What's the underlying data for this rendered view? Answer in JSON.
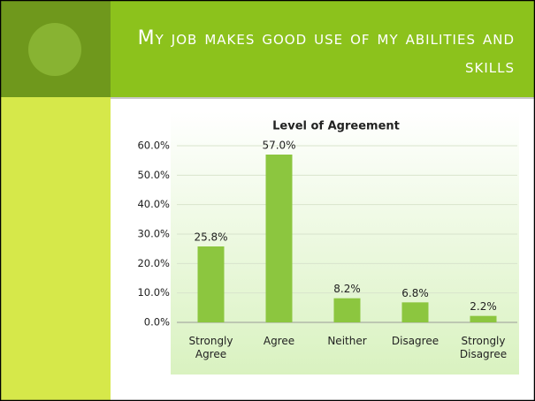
{
  "title": "My job makes good use of my abilities and skills",
  "chart_data": {
    "type": "bar",
    "title": "Level of Agreement",
    "categories": [
      "Strongly Agree",
      "Agree",
      "Neither",
      "Disagree",
      "Strongly Disagree"
    ],
    "values": [
      25.8,
      57.0,
      8.2,
      6.8,
      2.2
    ],
    "value_labels": [
      "25.8%",
      "57.0%",
      "8.2%",
      "6.8%",
      "2.2%"
    ],
    "color": "#8cc63f",
    "ylim": [
      0,
      60
    ],
    "yticks": [
      {
        "value": 0,
        "label": "0.0%"
      },
      {
        "value": 10,
        "label": "10.0%"
      },
      {
        "value": 20,
        "label": "20.0%"
      },
      {
        "value": 30,
        "label": "30.0%"
      },
      {
        "value": 40,
        "label": "40.0%"
      },
      {
        "value": 50,
        "label": "50.0%"
      },
      {
        "value": 60,
        "label": "60.0%"
      }
    ],
    "grid": true
  }
}
